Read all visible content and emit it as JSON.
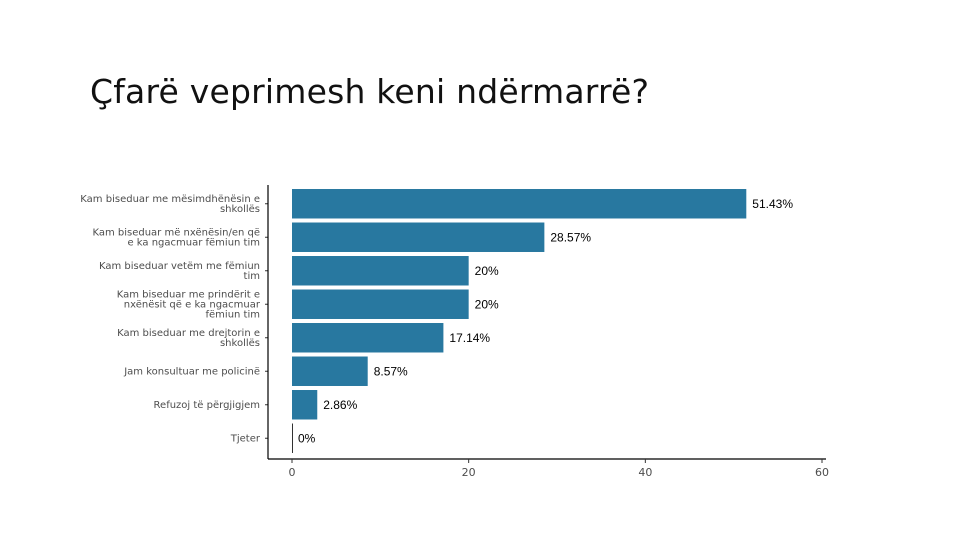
{
  "slide": {
    "title": "Çfarë veprimesh keni ndërmarrë?"
  },
  "chart_data": {
    "type": "bar",
    "orientation": "horizontal",
    "title": "Çfarë veprimesh keni ndërmarrë?",
    "xlabel": "",
    "ylabel": "",
    "categories": [
      [
        "Kam biseduar me mësimdhënësin e",
        "shkollës"
      ],
      [
        "Kam biseduar më nxënësin/en që",
        "e ka ngacmuar fëmiun tim"
      ],
      [
        "Kam biseduar vetëm me fëmiun",
        "tim"
      ],
      [
        "Kam biseduar me prindërit e",
        "nxënësit që e ka ngacmuar",
        "fëmiun tim"
      ],
      [
        "Kam biseduar me drejtorin e",
        "shkollës"
      ],
      [
        "Jam konsultuar me policinë"
      ],
      [
        "Refuzoj të përgjigjem"
      ],
      [
        "Tjeter"
      ]
    ],
    "values": [
      51.43,
      28.57,
      20,
      20,
      17.14,
      8.57,
      2.86,
      0
    ],
    "value_labels": [
      "51.43%",
      "28.57%",
      "20%",
      "20%",
      "17.14%",
      "8.57%",
      "2.86%",
      "0%"
    ],
    "xlim": [
      0,
      60
    ],
    "xticks": [
      0,
      20,
      40,
      60
    ],
    "grid": false,
    "legend": "none",
    "bar_color": "#2878A0",
    "axis_color": "#000000"
  }
}
